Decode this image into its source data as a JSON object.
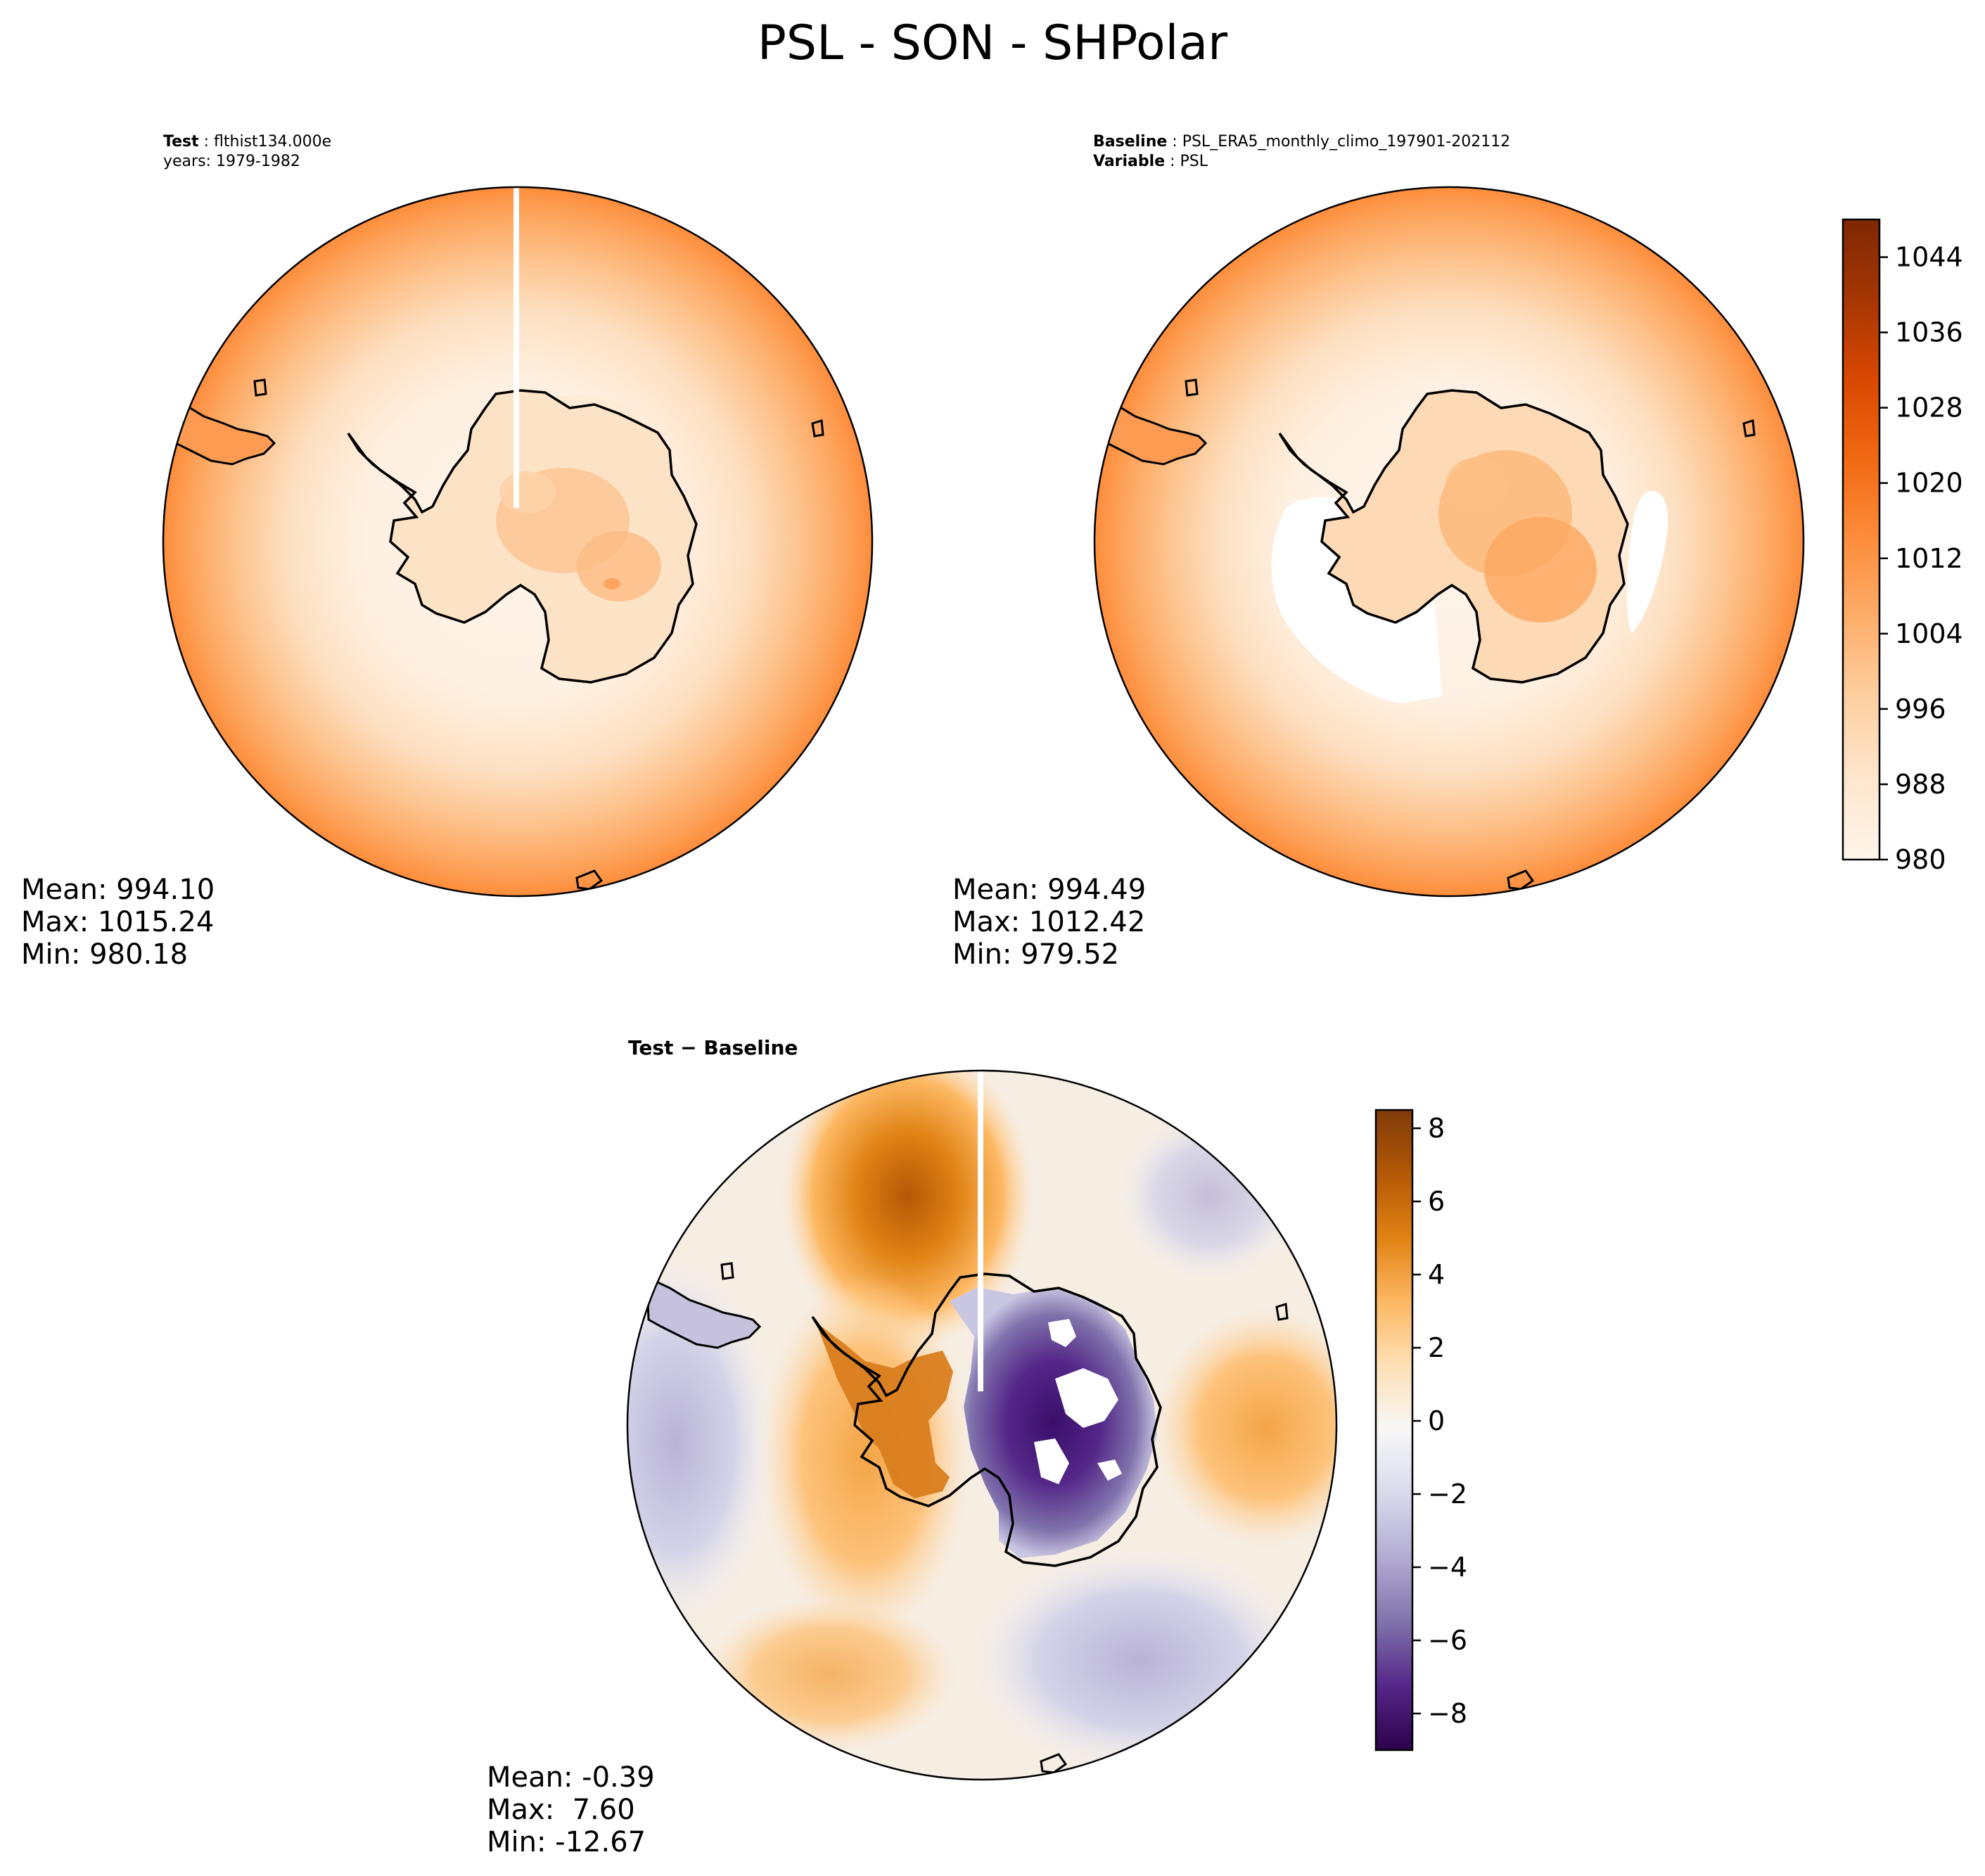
{
  "figure_title": "PSL - SON - SHPolar",
  "panels": {
    "test": {
      "label_key": "Test",
      "label_value": "flthist134.000e",
      "years_text": "years: 1979-1982",
      "stats": {
        "mean": "Mean: 994.10",
        "max": "Max: 1015.24",
        "min": "Min: 980.18"
      }
    },
    "baseline": {
      "label_key": "Baseline",
      "label_value": "PSL_ERA5_monthly_climo_197901-202112",
      "variable_key": "Variable",
      "variable_value": "PSL",
      "stats": {
        "mean": "Mean: 994.49",
        "max": "Max: 1012.42",
        "min": "Min: 979.52"
      }
    },
    "difference": {
      "label": "Test − Baseline",
      "stats": {
        "mean": "Mean: -0.39",
        "max": "Max:  7.60",
        "min": "Min: -12.67"
      }
    }
  },
  "colorbars": {
    "main": {
      "ticks": [
        "1044",
        "1036",
        "1028",
        "1020",
        "1012",
        "1004",
        "996",
        "988",
        "980"
      ],
      "range": [
        980,
        1048
      ],
      "colors": [
        "#fff5eb",
        "#fee6ce",
        "#fdd0a2",
        "#fdae6b",
        "#fd8d3c",
        "#f16913",
        "#d94801",
        "#a63603",
        "#7f2704"
      ]
    },
    "diff": {
      "ticks": [
        "8",
        "6",
        "4",
        "2",
        "0",
        "−2",
        "−4",
        "−6",
        "−8"
      ],
      "range": [
        -9,
        8.5
      ],
      "colors": [
        "#2d004b",
        "#542788",
        "#8073ac",
        "#b2abd2",
        "#d8daeb",
        "#f7f7f7",
        "#fee0b6",
        "#fdb863",
        "#e08214",
        "#b35806",
        "#7f3b08"
      ]
    }
  }
}
